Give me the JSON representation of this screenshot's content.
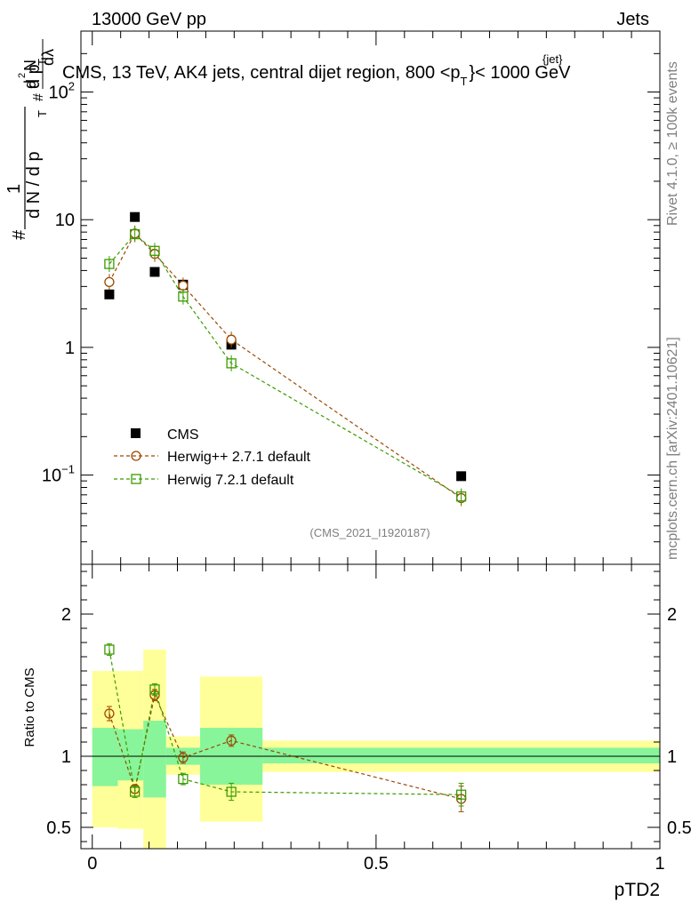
{
  "header": {
    "energy_label": "13000 GeV pp",
    "category_label": "Jets"
  },
  "side_labels": {
    "rivet": "Rivet 4.1.0, ≥ 100k events",
    "mcplots": "mcplots.cern.ch [arXiv:2401.10621]"
  },
  "chart_data": [
    {
      "type": "scatter",
      "title_text": "CMS, 13 TeV, AK4 jets, central dijet region, 800 <p",
      "title_sub": "T",
      "title_sup": "{jet}",
      "title_suffix": "}< 1000 GeV",
      "ylabel_parts": [
        "#",
        "1",
        "d N / d p",
        "T",
        "#",
        "d p",
        "T",
        "d",
        "2",
        "N",
        "dλ"
      ],
      "yscale": "log",
      "ylim": [
        0.02,
        300
      ],
      "xlim": [
        -0.02,
        1.0
      ],
      "ytick_labels": [
        {
          "base": "10",
          "exp": "−1",
          "value": 0.1
        },
        {
          "base": "1",
          "exp": "",
          "value": 1
        },
        {
          "base": "10",
          "exp": "",
          "value": 10
        },
        {
          "base": "10",
          "exp": "2",
          "value": 100
        }
      ],
      "analysis_tag": "(CMS_2021_I1920187)",
      "series": [
        {
          "name": "CMS",
          "marker": "filled-square",
          "color": "#000000",
          "x": [
            0.03,
            0.075,
            0.11,
            0.16,
            0.245,
            0.65
          ],
          "y": [
            2.6,
            10.5,
            3.9,
            3.1,
            1.05,
            0.098
          ]
        },
        {
          "name": "Herwig++ 2.7.1 default",
          "marker": "open-circle",
          "color": "#9b4a00",
          "x": [
            0.03,
            0.075,
            0.11,
            0.16,
            0.245,
            0.65
          ],
          "y": [
            3.25,
            7.8,
            5.4,
            3.05,
            1.15,
            0.066
          ]
        },
        {
          "name": "Herwig 7.2.1 default",
          "marker": "open-square",
          "color": "#3a9a00",
          "x": [
            0.03,
            0.075,
            0.11,
            0.16,
            0.245,
            0.65
          ],
          "y": [
            4.5,
            7.7,
            5.7,
            2.5,
            0.75,
            0.068
          ]
        }
      ]
    },
    {
      "type": "scatter",
      "ylabel": "Ratio to CMS",
      "xlabel": "pTD2",
      "xlim": [
        -0.02,
        1.0
      ],
      "ylim": [
        0.35,
        2.35
      ],
      "xticks": [
        0,
        0.5,
        1
      ],
      "xtick_labels": [
        "0",
        "0.5",
        "1"
      ],
      "yticks": [
        0.5,
        1,
        2
      ],
      "ytick_labels": [
        "0.5",
        "1",
        "2"
      ],
      "bins": [
        {
          "lo": 0.0,
          "hi": 0.045,
          "band1": [
            0.79,
            1.2
          ],
          "band2": [
            0.5,
            1.6
          ]
        },
        {
          "lo": 0.045,
          "hi": 0.09,
          "band1": [
            0.83,
            1.19
          ],
          "band2": [
            0.49,
            1.6
          ]
        },
        {
          "lo": 0.09,
          "hi": 0.13,
          "band1": [
            0.71,
            1.25
          ],
          "band2": [
            0.3,
            1.75
          ]
        },
        {
          "lo": 0.13,
          "hi": 0.19,
          "band1": [
            0.94,
            1.06
          ],
          "band2": [
            0.87,
            1.14
          ]
        },
        {
          "lo": 0.19,
          "hi": 0.3,
          "band1": [
            0.8,
            1.2
          ],
          "band2": [
            0.54,
            1.56
          ]
        },
        {
          "lo": 0.3,
          "hi": 1.0,
          "band1": [
            0.95,
            1.06
          ],
          "band2": [
            0.89,
            1.11
          ]
        }
      ],
      "series": [
        {
          "name": "Herwig++ 2.7.1 default",
          "color": "#9b4a00",
          "x": [
            0.03,
            0.075,
            0.11,
            0.16,
            0.245,
            0.65
          ],
          "y": [
            1.3,
            0.77,
            1.43,
            0.99,
            1.11,
            0.7
          ],
          "err": [
            0.05,
            0.03,
            0.04,
            0.04,
            0.04,
            0.09
          ]
        },
        {
          "name": "Herwig 7.2.1 default",
          "color": "#3a9a00",
          "x": [
            0.03,
            0.075,
            0.11,
            0.16,
            0.245,
            0.65
          ],
          "y": [
            1.75,
            0.75,
            1.47,
            0.84,
            0.75,
            0.73
          ],
          "err": [
            0.04,
            0.04,
            0.04,
            0.04,
            0.06,
            0.08
          ]
        }
      ]
    }
  ]
}
